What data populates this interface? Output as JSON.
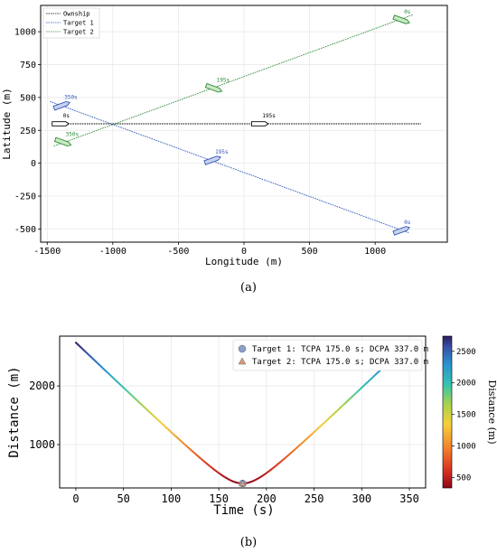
{
  "captions": {
    "a": "(a)",
    "b": "(b)"
  },
  "colors": {
    "ownship": "#000000",
    "target1": "#2f55b8",
    "target2": "#2e8b3a"
  },
  "chart_data": [
    {
      "type": "line",
      "xlabel": "Longitude (m)",
      "ylabel": "Latitude (m)",
      "xlim": [
        -1550,
        1550
      ],
      "ylim": [
        -600,
        1200
      ],
      "x_ticks": [
        -1500,
        -1000,
        -500,
        0,
        500,
        1000
      ],
      "y_ticks": [
        -500,
        -250,
        0,
        250,
        500,
        750,
        1000
      ],
      "grid": true,
      "legend_position": "top-left",
      "series": [
        {
          "name": "Ownship",
          "color": "#000000",
          "points": [
            [
              -1450,
              300
            ],
            [
              1350,
              300
            ]
          ]
        },
        {
          "name": "Target 1",
          "color": "#2f55b8",
          "points": [
            [
              -1480,
              470
            ],
            [
              1260,
              -530
            ]
          ]
        },
        {
          "name": "Target 2",
          "color": "#2e8b3a",
          "points": [
            [
              -1450,
              130
            ],
            [
              1290,
              1130
            ]
          ]
        }
      ],
      "ship_markers": [
        {
          "series": "Ownship",
          "label": "0s",
          "x": -1400,
          "y": 300,
          "angle": 0
        },
        {
          "series": "Ownship",
          "label": "195s",
          "x": 120,
          "y": 300,
          "angle": 0
        },
        {
          "series": "Target 1",
          "label": "350s",
          "x": -1390,
          "y": 440,
          "angle": -20
        },
        {
          "series": "Target 1",
          "label": "195s",
          "x": -240,
          "y": 25,
          "angle": -20
        },
        {
          "series": "Target 1",
          "label": "0s",
          "x": 1200,
          "y": -510,
          "angle": -20
        },
        {
          "series": "Target 2",
          "label": "350s",
          "x": -1380,
          "y": 160,
          "angle": 20
        },
        {
          "series": "Target 2",
          "label": "195s",
          "x": -230,
          "y": 570,
          "angle": 20
        },
        {
          "series": "Target 2",
          "label": "0s",
          "x": 1200,
          "y": 1090,
          "angle": 20
        }
      ]
    },
    {
      "type": "line",
      "xlabel": "Time (s)",
      "ylabel": "Distance (m)",
      "xlim": [
        -17,
        367
      ],
      "ylim": [
        260,
        2850
      ],
      "x_ticks": [
        0,
        50,
        100,
        150,
        200,
        250,
        300,
        350
      ],
      "y_ticks": [
        1000,
        2000
      ],
      "grid": true,
      "legend_position": "top-right",
      "colorbar": {
        "label": "Distance (m)",
        "range": [
          337,
          2740
        ],
        "ticks": [
          500,
          1000,
          1500,
          2000,
          2500
        ]
      },
      "series": [
        {
          "name": "distance",
          "tcpa": 175,
          "dcpa": 337,
          "d0": 2740,
          "t_end": 350
        }
      ],
      "markers": [
        {
          "label": "Target 1: TCPA 175.0 s; DCPA 337.0 m",
          "x": 175,
          "y": 337,
          "shape": "circle",
          "color": "#8c9dc9"
        },
        {
          "label": "Target 2: TCPA 175.0 s; DCPA 337.0 m",
          "x": 175,
          "y": 337,
          "shape": "triangle",
          "color": "#d49b7a"
        }
      ]
    }
  ]
}
